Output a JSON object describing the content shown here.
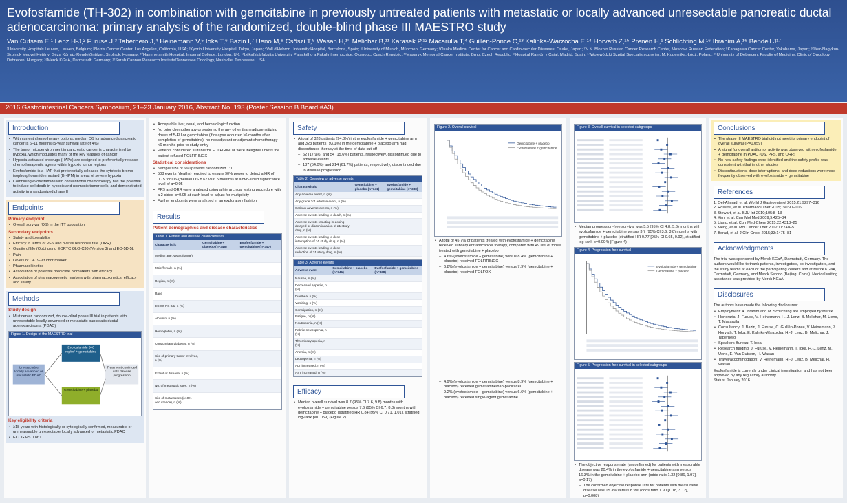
{
  "header": {
    "title": "Evofosfamide (TH-302) in combination with gemcitabine in previously untreated patients with metastatic or locally advanced unresectable pancreatic ductal adenocarcinoma: primary analysis of the randomized, double-blind phase III MAESTRO study",
    "authors": "Van Cutsem E,¹ Lenz H-J,² Furuse J,³ Tabernero J,⁴ Heinemann V,⁵ Ioka T,⁶ Bazin I,⁷ Ueno M,⁸ Csőszi T,⁹ Wasan H,¹⁰ Melichar B,¹¹ Karasek P,¹² Macarulla T,⁴ Guillén-Ponce C,¹³ Kalinka-Warzocha E,¹⁴ Horvath Z,¹⁵ Prenen H,¹ Schlichting M,¹⁶ Ibrahim A,¹⁶ Bendell J¹⁷",
    "affiliations": "¹University Hospitals Leuven, Leuven, Belgium; ²Norris Cancer Center, Los Angeles, California, USA; ³Kyorin University Hospital, Tokyo, Japan; ⁴Vall d'Hebron University Hospital, Barcelona, Spain; ⁵University of Munich, München, Germany; ⁶Osaka Medical Center for Cancer and Cardiovascular Diseases, Osaka, Japan; ⁷N.N. Blokhin Russian Cancer Research Center, Moscow, Russian Federation; ⁸Kanagawa Cancer Center, Yokohama, Japan; ⁹Jász-Nagykun-Szolnok Megyei Hetényi Géza Kórház-Rendelőintézet, Szolnok, Hungary; ¹⁰Hammersmith Hospital, Imperial College, London, UK; ¹¹Lékařská fakulta Univerzity Palackého a Fakultní nemocnice, Olomouc, Czech Republic; ¹²Masaryk Memorial Cancer Institute, Brno, Czech Republic; ¹³Hospital Ramón y Cajal, Madrid, Spain; ¹⁴Wojewódzki Szpital Specjalistyczny im. M. Kopernika, Łódź, Poland; ¹⁵University of Debrecen, Faculty of Medicine, Clinic of Oncology, Debrecen, Hungary; ¹⁶Merck KGaA, Darmstadt, Germany; ¹⁷Sarah Cannon Research Institute/Tennessee Oncology, Nashville, Tennessee, USA",
    "meeting": "2016 Gastrointestinal Cancers Symposium, 21–23 January 2016, Abstract No. 193 (Poster Session B Board #A3)"
  },
  "columns": [
    {
      "sections": [
        {
          "title": "Introduction",
          "tone": "blue",
          "blocks": [
            {
              "b": "With current chemotherapy options, median OS for advanced pancreatic cancer is 6–11 months (5-year survival rate of 4%)"
            },
            {
              "b": "The tumor microenvironment in pancreatic cancer is characterized by hypoxia, which modulates many of the key features of cancer"
            },
            {
              "b": "Hypoxia-activated prodrugs (HAPs) are designed to preferentially release chemotherapeutic agents within hypoxic tumor regions"
            },
            {
              "b": "Evofosfamide is a HAP that preferentially releases the cytotoxic bromo-isophosphoramide mustard (Br-IPM) in areas of severe hypoxia"
            },
            {
              "b": "Combining evofosfamide with conventional chemotherapy has the potential to induce cell death in hypoxic and normoxic tumor cells, and demonstrated activity in a randomized phase II"
            }
          ]
        },
        {
          "title": "Endpoints",
          "tone": "beige",
          "blocks": [
            {
              "sub": "Primary endpoint"
            },
            {
              "b": "Overall survival (OS) in the ITT population"
            },
            {
              "sub": "Secondary endpoints"
            },
            {
              "b": "Safety and tolerability"
            },
            {
              "b": "Efficacy in terms of PFS and overall response rate (ORR)"
            },
            {
              "b": "Quality of life (QoL) using EORTC QLQ-C30 (Version 3) and EQ-5D-5L"
            },
            {
              "b": "Pain"
            },
            {
              "b": "Levels of CA19-9 tumor marker"
            },
            {
              "b": "Pharmacokinetics"
            },
            {
              "b": "Association of potential predictive biomarkers with efficacy"
            },
            {
              "b": "Association of pharmacogenetic markers with pharmacokinetics, efficacy and safety"
            }
          ]
        },
        {
          "title": "Methods",
          "tone": "blue",
          "blocks": [
            {
              "sub": "Study design"
            },
            {
              "b": "Multicenter, randomized, double-blind phase III trial in patients with unresectable locally advanced or metastatic pancreatic ductal adenocarcinoma (PDAC)"
            },
            {
              "fig": "Figure 1. Design of the MAESTRO trial",
              "kind": "design",
              "boxes": [
                "Unresectable locally advanced or metastatic PDAC",
                "Evofosfamide 340 mg/m² + gemcitabine",
                "Gemcitabine + placebo",
                "Treatment continued until disease progression"
              ]
            },
            {
              "sub": "Key eligibility criteria"
            },
            {
              "b": "≥18 years with histologically or cytologically confirmed, measurable or unmeasurable unresectable locally advanced or metastatic PDAC"
            },
            {
              "b": "ECOG PS 0 or 1"
            }
          ]
        }
      ]
    },
    {
      "sections": [
        {
          "tone": "none",
          "blocks": [
            {
              "b": "Acceptable liver, renal, and hematologic function"
            },
            {
              "b": "No prior chemotherapy or systemic therapy other than radiosensitizing doses of 5-FU or gemcitabine (if relapse occurred ≥6 months after completion of gemcitabine); no neoadjuvant or adjuvant chemotherapy <6 months prior to study entry"
            },
            {
              "b": "Patients considered suitable for FOLFIRINOX were ineligible unless the patient refused FOLFIRINOX"
            },
            {
              "sub": "Statistical considerations"
            },
            {
              "b": "Sample size of 660 patients randomized 1:1"
            },
            {
              "b": "508 events (deaths) required to ensure 90% power to detect a HR of 0.75 for OS (median OS 8.67 vs 6.5 months) at a two-sided significance level of α=0.05"
            },
            {
              "b": "PFS and ORR were analyzed using a hierarchical testing procedure with a 2-sided α=0.05 at each level to adjust for multiplicity"
            },
            {
              "b": "Further endpoints were analyzed in an exploratory fashion"
            }
          ]
        },
        {
          "title": "Results",
          "tone": "none",
          "blocks": [
            {
              "sub": "Patient demographics and disease characteristics"
            },
            {
              "fig": "Table 1. Patient and disease characteristics",
              "kind": "table",
              "cls": "t1",
              "cols": [
                "Characteristic",
                "Gemcitabine + placebo (n=346)",
                "Evofosfamide + gemcitabine (n=347)"
              ],
              "rows": [
                "Median age, years (range)",
                "Male/female, n (%)",
                "Region, n (%)",
                "Race",
                "ECOG PS 0/1, n (%)",
                "Albumin, n (%)",
                "Hemoglobin, n (%)",
                "Concomitant diabetes, n (%)",
                "Site of primary tumor involved, n (%)",
                "Extent of disease, n (%)",
                "No. of metastatic sites, n (%)",
                "Site of metastases (≥10% occurrence), n (%)"
              ]
            }
          ]
        }
      ]
    },
    {
      "sections": [
        {
          "title": "Safety",
          "tone": "none",
          "blocks": [
            {
              "b": "A total of 328 patients (94.8%) in the evofosfamide + gemcitabine arm and 323 patients (93.1%) in the gemcitabine + placebo arm had discontinued therapy at the time of data cut-off"
            },
            {
              "d": "62 (17.9%) and 54 (15.6%) patients, respectively, discontinued due to adverse events"
            },
            {
              "d": "187 (54.0%) and 214 (61.7%) patients, respectively, discontinued due to disease progression"
            },
            {
              "fig": "Table 2. Overview of adverse events",
              "kind": "table",
              "cols": [
                "Characteristic",
                "Gemcitabine + placebo (n=341)",
                "Evofosfamide + gemcitabine (n=338)"
              ],
              "rows": [
                "Any adverse event, n (%)",
                "Any grade 3/4 adverse event, n (%)",
                "Serious adverse events, n (%)",
                "Adverse events leading to death, n (%)",
                "Adverse events resulting in dosing delayed or discontinuation of ≥1 study drug, n (%)",
                "Adverse events leading to dose interruption of ≥1 study drug, n (%)",
                "Adverse events leading to dose reduction of ≥1 study drug, n (%)"
              ]
            },
            {
              "fig": "Table 3. Adverse events",
              "kind": "table",
              "cols": [
                "Adverse event",
                "Gemcitabine + placebo (n=341)",
                "Evofosfamide + gemcitabine (n=338)"
              ],
              "rows": [
                "Nausea, n (%)",
                "Decreased appetite, n (%)",
                "Diarrhea, n (%)",
                "Vomiting, n (%)",
                "Constipation, n (%)",
                "Fatigue, n (%)",
                "Neutropenia, n (%)",
                "Febrile neutropenia, n (%)",
                "Thrombocytopenia, n (%)",
                "Anemia, n (%)",
                "Leukopenia, n (%)",
                "ALT increased, n (%)",
                "AST increased, n (%)"
              ]
            }
          ]
        },
        {
          "title": "Efficacy",
          "tone": "none",
          "blocks": [
            {
              "b": "Median overall survival was 8.7 (95% CI 7.6, 9.8) months with evofosfamide + gemcitabine versus 7.6 (95% CI 6.7, 8.3) months with gemcitabine + placebo (stratified HR 0.84 [95% CI 0.71, 1.01], stratified log-rank p=0.059) (Figure 2)"
            }
          ]
        }
      ]
    },
    {
      "sections": [
        {
          "tone": "none",
          "blocks": [
            {
              "fig": "Figure 2. Overall survival",
              "kind": "km",
              "legend": [
                "Gemcitabine + placebo",
                "Evofosfamide + gemcitabine"
              ]
            },
            {
              "b": "A total of 45.7% of patients treated with evofosfamide + gemcitabine received subsequent anticancer therapy, compared with 49.0% of those treated with gemcitabine + placebo"
            },
            {
              "d": "4.6% (evofosfamide + gemcitabine) versus 8.4% (gemcitabine + placebo) received FOLFIRINOX"
            },
            {
              "d": "6.8% (evofosfamide + gemcitabine) versus 7.9% (gemcitabine + placebo) received FOLFOX"
            },
            {
              "gap": true
            },
            {
              "d": "4.9% (evofosfamide + gemcitabine) versus 8.9% (gemcitabine + placebo) received gemcitabine/nab-paclitaxel"
            },
            {
              "d": "9.2% (evofosfamide + gemcitabine) versus 6.6% (gemcitabine + placebo) received single-agent gemcitabine"
            }
          ]
        }
      ]
    },
    {
      "sections": [
        {
          "tone": "none",
          "blocks": [
            {
              "fig": "Figure 3. Overall survival in selected subgroups",
              "kind": "forest"
            },
            {
              "b": "Median progression-free survival was 5.5 (95% CI 4.8, 5.6) months with evofosfamide + gemcitabine versus 3.7 (95% CI 3.6, 3.8) months with gemcitabine + placebo (stratified HR 0.77 [95% CI 0.65, 0.92], stratified log-rank p=0.004) (Figure 4)"
            },
            {
              "fig": "Figure 4. Progression-free survival",
              "kind": "km",
              "legend": [
                "Evofosfamide + gemcitabine",
                "Gemcitabine + placebo"
              ]
            },
            {
              "fig": "Figure 5. Progression-free survival in selected subgroups",
              "kind": "forest"
            },
            {
              "b": "The objective response rate (unconfirmed) for patients with measurable disease was 20.4% in the evofosfamide + gemcitabine arm versus 16.3% in the gemcitabine + placebo arm (odds ratio 1.32 [0.86, 1.97], p=0.17)"
            },
            {
              "d": "The confirmed objective response rate for patients with measurable disease was 15.3% versus 8.9% (odds ratio 1.90 [1.18, 3.12], p=0.008)"
            }
          ]
        }
      ]
    },
    {
      "sections": [
        {
          "title": "Conclusions",
          "tone": "yellow",
          "blocks": [
            {
              "b": "The phase III MAESTRO trial did not meet its primary endpoint of overall survival (P=0.059)"
            },
            {
              "b": "A signal for overall antitumor activity was observed with evofosfamide + gemcitabine in PDAC (OS, PFS, and ORR)"
            },
            {
              "b": "No new safety findings were identified and the safety profile was consistent with that in other studies"
            },
            {
              "b": "Discontinuations, dose interruptions, and dose reductions were more frequently observed with evofosfamide + gemcitabine"
            }
          ]
        },
        {
          "title": "References",
          "tone": "none",
          "blocks": [
            {
              "p": "1. Oel-Ahmad, et al. World J Gastroenterol 2015;21:9297–316"
            },
            {
              "p": "2. Rosslfel, et al. Pharmacol Ther 2015;150:90–106"
            },
            {
              "p": "3. Stewart, et al. BJU Int 2010;105:8–13"
            },
            {
              "p": "4. Kim, et al. Curr Mol Med 2009;9:425–34"
            },
            {
              "p": "5. Liang, et al. Curr Med Chem 2015;22:4313–25"
            },
            {
              "p": "6. Meng, et al. Mol Cancer Ther 2012;11:740–51"
            },
            {
              "p": "7. Borad, et al. J Clin Oncol 2015;33:1475–81"
            }
          ]
        },
        {
          "title": "Acknowledgments",
          "tone": "none",
          "blocks": [
            {
              "p": "The trial was sponsored by Merck KGaA, Darmstadt, Germany. The authors would like to thank patients, investigators, co-investigators, and the study teams at each of the participating centers and at Merck KGaA, Darmstadt, Germany, and Merck Serono (Beijing, China). Medical writing assistance was provided by Merck KGaA."
            }
          ]
        },
        {
          "title": "Disclosures",
          "tone": "none",
          "blocks": [
            {
              "p": "The authors have made the following disclosures:"
            },
            {
              "b": "Employment: A. Ibrahim and M. Schlichting are employed by Merck"
            },
            {
              "b": "Honoraria: J. Furuse, V. Heinemann, H.-J. Lenz, B. Melichar, M. Ueno, T. Macarulla"
            },
            {
              "b": "Consultancy: J. Bazin, J. Furuse, C. Guillén-Ponce, V. Heinemann, Z. Horvath, T. Ioka, E. Kalinka-Warzocha, H.-J. Lenz, B. Melichar, J. Tabernero"
            },
            {
              "b": "Speakers Bureau: T. Ioka"
            },
            {
              "b": "Research funding: J. Furuse, V. Heinemann, T. Ioka, H.-J. Lenz, M. Ueno, E. Van Cutsem, H. Wasan"
            },
            {
              "b": "Travel/accommodation: V. Heinemann, H.-J. Lenz, B. Melichar, H. Wasan"
            },
            {
              "p": "Evofosfamide is currently under clinical investigation and has not been approved by any regulatory authority."
            },
            {
              "p": "Status: January 2016"
            }
          ]
        }
      ]
    }
  ]
}
